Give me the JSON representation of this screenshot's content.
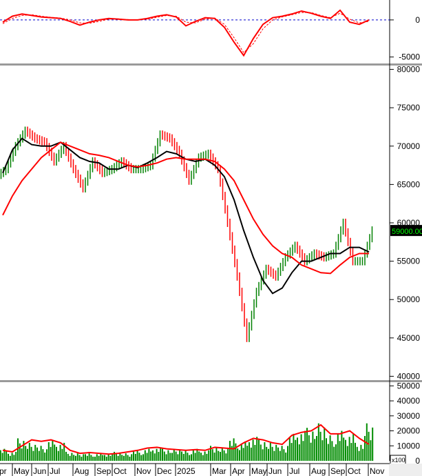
{
  "chart_data": [
    {
      "type": "line",
      "panel": "macd",
      "yticks": [
        0,
        -5000
      ],
      "ylim": [
        -5500,
        2500
      ],
      "series": [
        {
          "values": [
            -300,
            500,
            800,
            600,
            400,
            300,
            200,
            -200,
            -700,
            -300,
            0,
            200,
            100,
            0,
            0,
            200,
            500,
            700,
            400,
            -800,
            -200,
            300,
            200,
            -1000,
            -3000,
            -4800,
            -2500,
            -600,
            300,
            500,
            800,
            1200,
            900,
            500,
            200,
            1300,
            -300,
            -600,
            0
          ],
          "color": "#ff0000",
          "style": "solid"
        },
        {
          "values": [
            -500,
            200,
            600,
            700,
            500,
            350,
            250,
            0,
            -400,
            -450,
            -200,
            100,
            150,
            50,
            0,
            100,
            350,
            600,
            500,
            -300,
            -400,
            100,
            250,
            -600,
            -2400,
            -4400,
            -3200,
            -1200,
            0,
            400,
            700,
            1000,
            1000,
            600,
            300,
            900,
            100,
            -400,
            -200
          ],
          "color": "#ff0000",
          "style": "dashed"
        }
      ],
      "zero_line_color": "#0000cc"
    },
    {
      "type": "bar",
      "panel": "price",
      "yticks": [
        80000,
        75000,
        70000,
        65000,
        60000,
        55000,
        50000,
        45000,
        40000
      ],
      "ylim": [
        39500,
        80500
      ],
      "close": [
        67000,
        70000,
        72000,
        71000,
        70500,
        68000,
        70000,
        67000,
        64500,
        68000,
        66500,
        67000,
        68000,
        67000,
        67000,
        67500,
        71500,
        71000,
        69000,
        65500,
        68500,
        69000,
        67000,
        60000,
        53000,
        45000,
        51000,
        54000,
        53000,
        55500,
        57000,
        55000,
        56000,
        55500,
        56000,
        60000,
        55000,
        55000,
        59000
      ],
      "series": [
        {
          "values": [
            66500,
            69500,
            71000,
            70200,
            70000,
            70000,
            70500,
            69500,
            68500,
            68000,
            67800,
            67000,
            67000,
            67500,
            67200,
            67800,
            68500,
            69300,
            69000,
            68300,
            68000,
            68300,
            67500,
            66000,
            63000,
            59000,
            55500,
            52500,
            50800,
            51500,
            53500,
            55000,
            55000,
            55500,
            56000,
            56000,
            56800,
            56800,
            56200
          ],
          "color": "#000000"
        },
        {
          "values": [
            61000,
            63500,
            65500,
            67000,
            68500,
            69500,
            70500,
            70000,
            69500,
            69000,
            68800,
            68500,
            68000,
            67500,
            67300,
            67500,
            67800,
            68300,
            68500,
            68300,
            68300,
            68300,
            68000,
            67000,
            65500,
            63000,
            60500,
            58500,
            57000,
            56000,
            55500,
            54500,
            54000,
            53500,
            53400,
            54500,
            55500,
            56000,
            56000
          ],
          "color": "#ff0000"
        }
      ],
      "up_color": "#008000",
      "down_color": "#ff0000",
      "last_price_label": "59000.00"
    },
    {
      "type": "bar",
      "panel": "volume",
      "yticks": [
        50000,
        40000,
        30000,
        20000,
        10000,
        0
      ],
      "ylim": [
        0,
        52000
      ],
      "unit_label": "x100",
      "values": [
        8000,
        6000,
        15000,
        12000,
        10000,
        14000,
        12000,
        6000,
        5000,
        5000,
        5000,
        5000,
        6000,
        5000,
        7000,
        8000,
        9000,
        8000,
        8000,
        7000,
        8000,
        7000,
        10000,
        9000,
        15000,
        13000,
        16000,
        14000,
        12000,
        10000,
        18000,
        20000,
        22000,
        25000,
        17000,
        20000,
        18000,
        12000,
        25000
      ],
      "ma": [
        7000,
        6000,
        10000,
        14000,
        13000,
        14000,
        12000,
        7000,
        5000,
        5500,
        5000,
        4500,
        5000,
        6000,
        7000,
        8500,
        9000,
        8000,
        7500,
        7000,
        7500,
        7000,
        9000,
        8500,
        8000,
        12000,
        15000,
        14000,
        12000,
        11000,
        17000,
        19000,
        20000,
        24000,
        18000,
        18000,
        20000,
        15000,
        11000
      ],
      "bar_color": "#008c00",
      "ma_color": "#ff0000"
    }
  ],
  "xaxis": {
    "labels": [
      "pr",
      "May",
      "Jun",
      "Jul",
      "Aug",
      "Sep",
      "Oct",
      "Nov",
      "Dec",
      "2025",
      "Mar",
      "Apr",
      "May",
      "Jun",
      "Jul",
      "Aug",
      "Sep",
      "Oct",
      "Nov"
    ]
  }
}
